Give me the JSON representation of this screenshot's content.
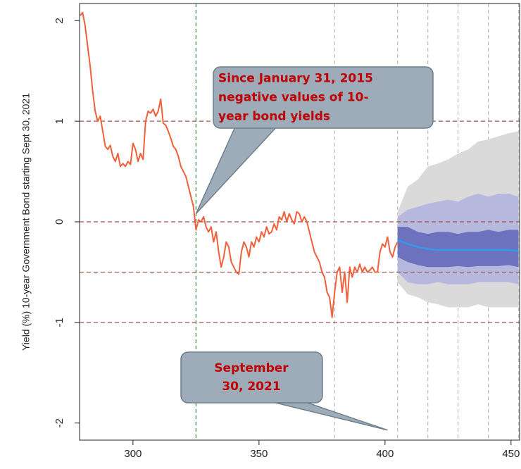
{
  "chart_data": {
    "type": "line",
    "y_label": "Yield (%) 10-year Government Bond starting Sept 30, 2021",
    "xlim": [
      278.8,
      453.4
    ],
    "ylim": [
      -2.17,
      2.17
    ],
    "xticks": [
      300,
      350,
      400,
      450
    ],
    "yticks": [
      -2,
      -1,
      0,
      1,
      2
    ],
    "hlines": {
      "color": "#a0524a",
      "values": [
        1,
        0,
        -0.5,
        -1
      ]
    },
    "vlines": [
      {
        "color": "#2e8b3a",
        "values": [
          325
        ]
      },
      {
        "color": "#bbbbbb",
        "values": [
          380,
          405,
          417,
          429,
          441,
          453
        ]
      }
    ],
    "series": [
      {
        "color": "#f0603a",
        "x": [
          279,
          280,
          281,
          282,
          283,
          284,
          285,
          286,
          287,
          288,
          289,
          290,
          291,
          292,
          293,
          294,
          295,
          296,
          297,
          298,
          299,
          300,
          301,
          302,
          303,
          304,
          305,
          306,
          307,
          308,
          309,
          310,
          311,
          312,
          313,
          314,
          315,
          316,
          317,
          318,
          319,
          320,
          321,
          322,
          323,
          324,
          325,
          326,
          327,
          328,
          329,
          330,
          331,
          332,
          333,
          334,
          335,
          336,
          337,
          338,
          339,
          340,
          341,
          342,
          343,
          344,
          345,
          346,
          347,
          348,
          349,
          350,
          351,
          352,
          353,
          354,
          355,
          356,
          357,
          358,
          359,
          360,
          361,
          362,
          363,
          364,
          365,
          366,
          367,
          368,
          369,
          370,
          371,
          372,
          373,
          374,
          375,
          376,
          377,
          378,
          379,
          380,
          381,
          382,
          383,
          384,
          385,
          386,
          387,
          388,
          389,
          390,
          391,
          392,
          393,
          394,
          395,
          396,
          397,
          398,
          399,
          400,
          401,
          402,
          403,
          404,
          405
        ],
        "values": [
          2.05,
          2.08,
          1.95,
          1.75,
          1.55,
          1.3,
          1.1,
          1.0,
          1.05,
          0.9,
          0.75,
          0.72,
          0.76,
          0.65,
          0.6,
          0.68,
          0.55,
          0.58,
          0.55,
          0.6,
          0.57,
          0.78,
          0.72,
          0.6,
          0.68,
          0.62,
          1.0,
          1.1,
          1.08,
          1.12,
          1.05,
          1.1,
          1.22,
          0.98,
          0.96,
          0.9,
          0.83,
          0.75,
          0.72,
          0.65,
          0.55,
          0.5,
          0.45,
          0.35,
          0.25,
          0.15,
          -0.08,
          0.02,
          0.0,
          0.05,
          -0.05,
          -0.1,
          -0.05,
          -0.2,
          -0.1,
          -0.3,
          -0.45,
          -0.35,
          -0.2,
          -0.25,
          -0.4,
          -0.45,
          -0.5,
          -0.52,
          -0.3,
          -0.2,
          -0.25,
          -0.35,
          -0.2,
          -0.25,
          -0.15,
          -0.2,
          -0.1,
          -0.15,
          -0.05,
          -0.12,
          -0.1,
          -0.02,
          -0.08,
          0.05,
          0.02,
          0.1,
          0.0,
          0.08,
          0.02,
          -0.02,
          0.1,
          0.08,
          0.0,
          0.05,
          0.0,
          -0.1,
          -0.2,
          -0.3,
          -0.35,
          -0.4,
          -0.5,
          -0.55,
          -0.7,
          -0.75,
          -0.95,
          -0.7,
          -0.5,
          -0.45,
          -0.7,
          -0.5,
          -0.8,
          -0.45,
          -0.55,
          -0.45,
          -0.5,
          -0.42,
          -0.5,
          -0.45,
          -0.5,
          -0.48,
          -0.45,
          -0.5,
          -0.5,
          -0.3,
          -0.22,
          -0.25,
          -0.15,
          -0.3,
          -0.35,
          -0.25,
          -0.2
        ]
      }
    ],
    "forecast": {
      "x": [
        405,
        409,
        413,
        417,
        421,
        425,
        429,
        433,
        437,
        441,
        445,
        449,
        453
      ],
      "mean": {
        "color": "#3399ee",
        "values": [
          -0.18,
          -0.22,
          -0.25,
          -0.27,
          -0.28,
          -0.28,
          -0.28,
          -0.28,
          -0.28,
          -0.28,
          -0.28,
          -0.28,
          -0.29
        ]
      },
      "bands": [
        {
          "color": "#dadada",
          "lower": [
            -0.6,
            -0.72,
            -0.75,
            -0.8,
            -0.82,
            -0.85,
            -0.85,
            -0.85,
            -0.82,
            -0.85,
            -0.85,
            -0.85,
            -0.85
          ],
          "upper": [
            0.1,
            0.35,
            0.42,
            0.55,
            0.58,
            0.62,
            0.68,
            0.72,
            0.8,
            0.82,
            0.85,
            0.88,
            0.9
          ]
        },
        {
          "color": "#b6b9dd",
          "lower": [
            -0.5,
            -0.6,
            -0.62,
            -0.62,
            -0.6,
            -0.62,
            -0.62,
            -0.62,
            -0.6,
            -0.6,
            -0.6,
            -0.6,
            -0.62
          ],
          "upper": [
            0.05,
            0.12,
            0.15,
            0.18,
            0.2,
            0.22,
            0.2,
            0.25,
            0.28,
            0.25,
            0.28,
            0.28,
            0.25
          ]
        },
        {
          "color": "#6c72bd",
          "lower": [
            -0.35,
            -0.4,
            -0.43,
            -0.45,
            -0.45,
            -0.45,
            -0.44,
            -0.45,
            -0.44,
            -0.44,
            -0.44,
            -0.43,
            -0.45
          ],
          "upper": [
            -0.05,
            -0.05,
            -0.1,
            -0.12,
            -0.1,
            -0.1,
            -0.12,
            -0.1,
            -0.1,
            -0.08,
            -0.1,
            -0.08,
            -0.08
          ]
        }
      ]
    },
    "annotations": [
      {
        "lines": [
          "Since January 31, 2015",
          "negative values of 10-",
          "year bond yields"
        ],
        "point": {
          "x": 325,
          "y": 0.08
        }
      },
      {
        "lines": [
          "September",
          "30, 2021"
        ],
        "point": {
          "x": 401,
          "y": -2.07
        }
      }
    ]
  }
}
